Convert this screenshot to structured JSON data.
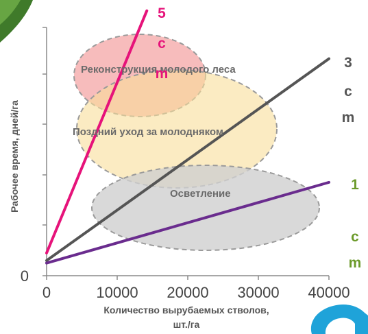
{
  "chart_data": {
    "type": "line",
    "xlabel": [
      "Количество вырубаемых стволов,",
      "шт./га"
    ],
    "ylabel": "Рабочее время, дней/га",
    "x_ticks": [
      "0",
      "10000",
      "20000",
      "30000",
      "40000"
    ],
    "xlim": [
      0,
      40000
    ],
    "ylim": [
      0,
      5.3
    ],
    "grid": false,
    "series": [
      {
        "name": "5 cm",
        "label_lines": [
          "5",
          "c",
          "m"
        ],
        "color": "#e6137a",
        "x": [
          0,
          14200
        ],
        "y": [
          0.45,
          5.25
        ]
      },
      {
        "name": "3 cm",
        "label_lines": [
          "3",
          "c",
          "m"
        ],
        "color": "#555555",
        "x": [
          0,
          40000
        ],
        "y": [
          0.3,
          4.3
        ]
      },
      {
        "name": "1 cm",
        "label_lines": [
          "1",
          "c",
          "m"
        ],
        "color": "#6b9a2a",
        "line_color": "#6a2c8e",
        "x": [
          0,
          40000
        ],
        "y": [
          0.25,
          1.85
        ]
      }
    ],
    "zones": [
      {
        "label": "Реконструкция молодого леса",
        "color": "#f4a5a5"
      },
      {
        "label": "Поздний уход за молодняком",
        "color": "#f8dd9a"
      },
      {
        "label": "Осветление",
        "color": "#cfcfcf"
      }
    ]
  }
}
